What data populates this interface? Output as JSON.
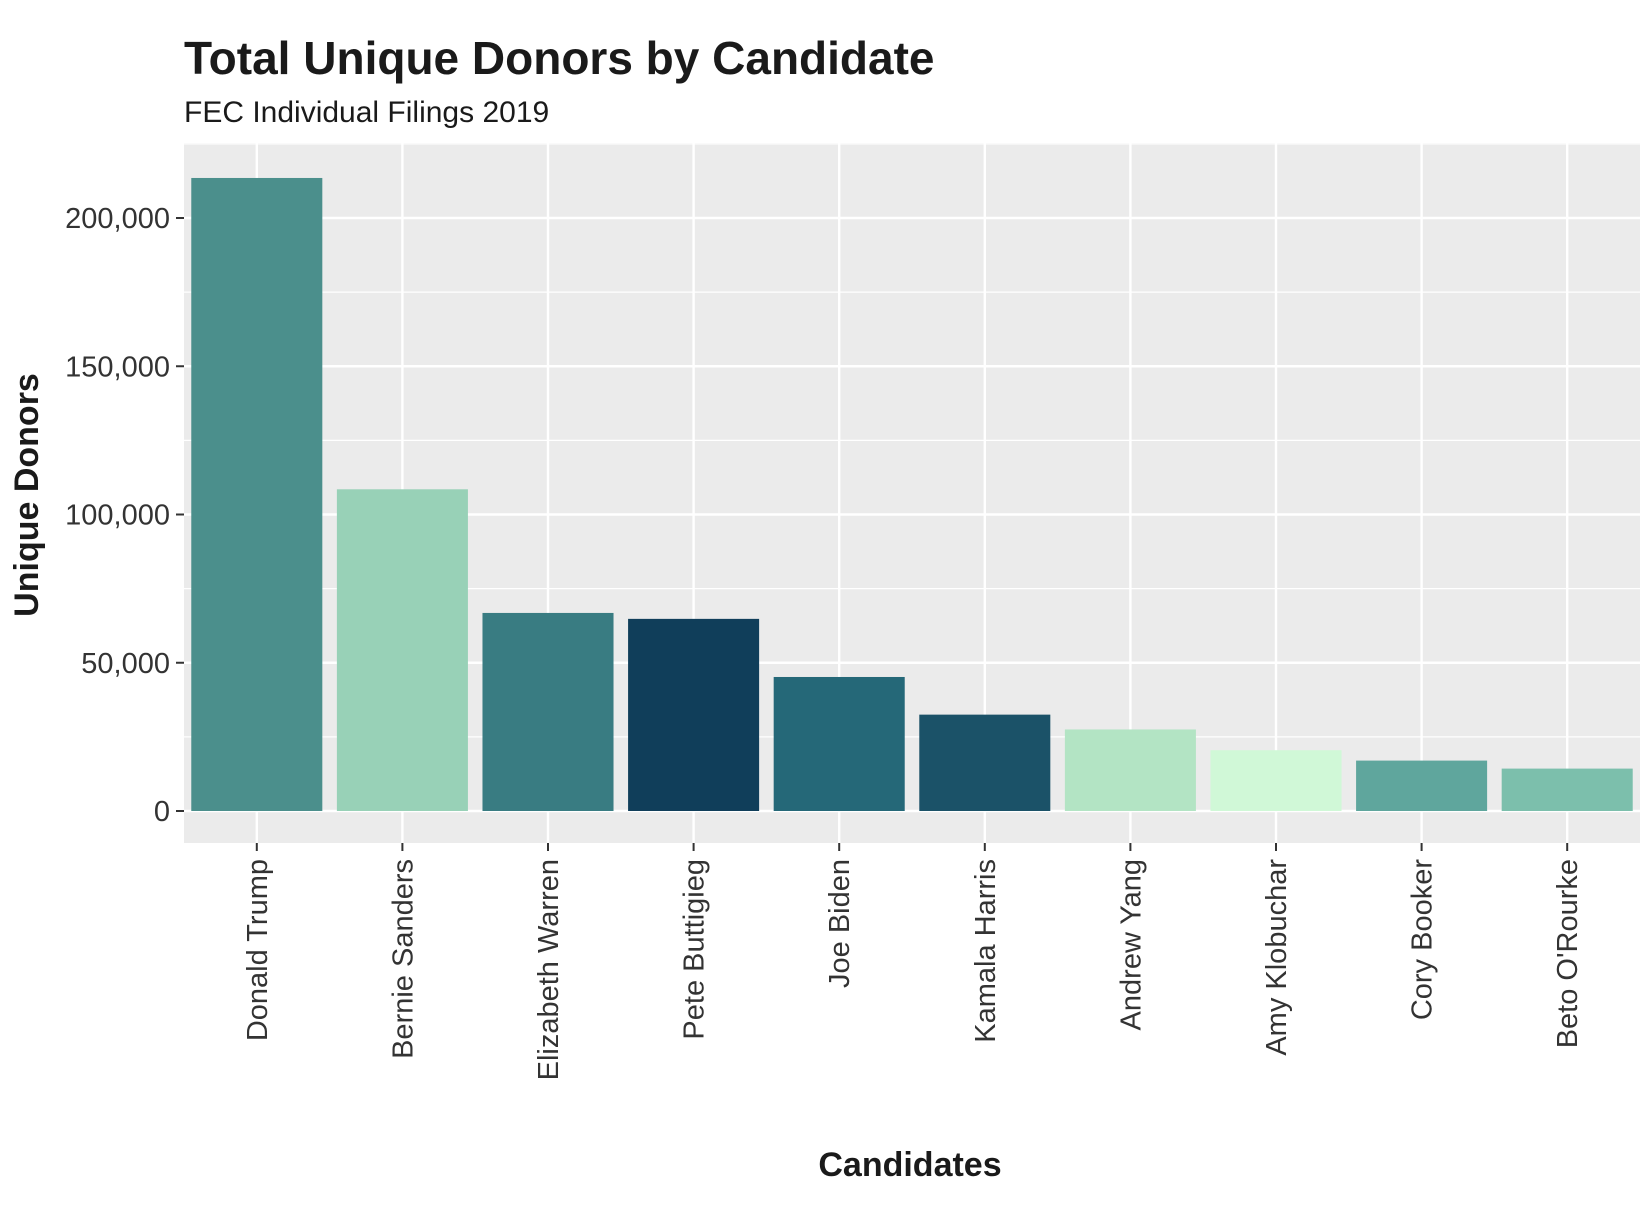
{
  "chart_data": {
    "type": "bar",
    "title": "Total Unique Donors by Candidate",
    "subtitle": "FEC Individual Filings 2019",
    "xlabel": "Candidates",
    "ylabel": "Unique Donors",
    "categories": [
      "Donald Trump",
      "Bernie Sanders",
      "Elizabeth Warren",
      "Pete Buttigieg",
      "Joe Biden",
      "Kamala Harris",
      "Andrew Yang",
      "Amy Klobuchar",
      "Cory Booker",
      "Beto O'Rourke"
    ],
    "values": [
      213500,
      108500,
      66800,
      64800,
      45200,
      32500,
      27500,
      20500,
      17000,
      14300
    ],
    "colors": [
      "#4b8f8c",
      "#98d1b7",
      "#397c82",
      "#103e5a",
      "#256878",
      "#1b5268",
      "#b3e4c4",
      "#d0f8d7",
      "#5fa69d",
      "#7cbfac"
    ],
    "ylim": [
      0,
      222000
    ],
    "yticks": [
      0,
      50000,
      100000,
      150000,
      200000
    ],
    "ytick_labels": [
      "0",
      "50,000",
      "100,000",
      "150,000",
      "200,000"
    ],
    "grid": true,
    "panel_color": "#ebebeb",
    "grid_color": "#ffffff"
  }
}
